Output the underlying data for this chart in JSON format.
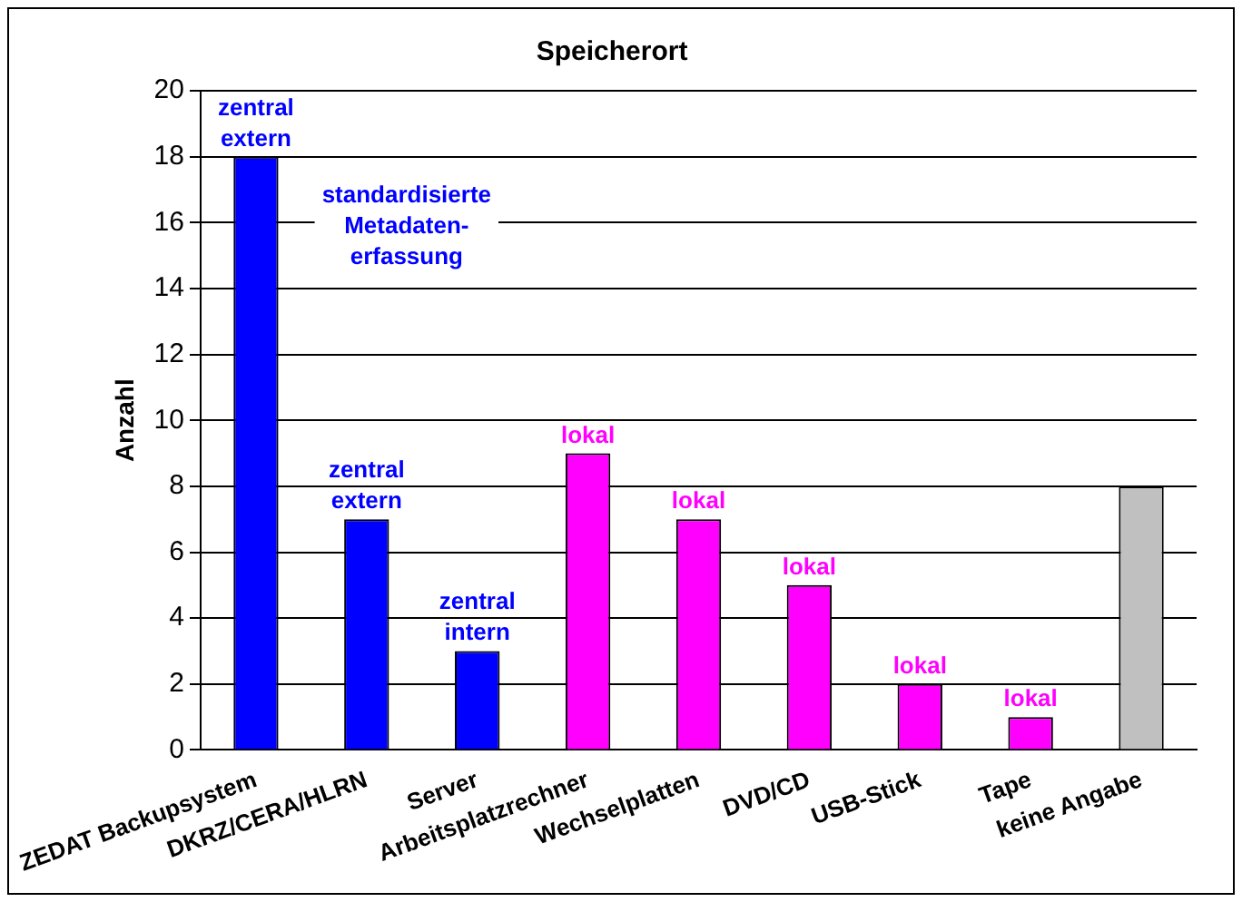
{
  "chart_data": {
    "type": "bar",
    "title": "Speicherort",
    "ylabel": "Anzahl",
    "categories": [
      "ZEDAT Backupsystem",
      "DKRZ/CERA/HLRN",
      "Server",
      "Arbeitsplatzrechner",
      "Wechselplatten",
      "DVD/CD",
      "USB-Stick",
      "Tape",
      "keine Angabe"
    ],
    "values": [
      18,
      7,
      3,
      9,
      7,
      5,
      2,
      1,
      8
    ],
    "colors": [
      "#0000ff",
      "#0000ff",
      "#0000ff",
      "#ff00ff",
      "#ff00ff",
      "#ff00ff",
      "#ff00ff",
      "#ff00ff",
      "#c0c0c0"
    ],
    "ylim": [
      0,
      20
    ],
    "yticks": [
      0,
      2,
      4,
      6,
      8,
      10,
      12,
      14,
      16,
      18,
      20
    ],
    "grid": "y",
    "legend": false,
    "annotations": [
      {
        "text": "zentral\nextern",
        "x": "ZEDAT Backupsystem",
        "y": 18
      },
      "standardisierte\nMetadaten-\nerfassung",
      {
        "text": "zentral\nextern",
        "x": "DKRZ/CERA/HLRN",
        "y": 7
      },
      {
        "text": "zentral\nintern",
        "x": "Server",
        "y": 3
      },
      {
        "text": "lokal",
        "x": "Arbeitsplatzrechner",
        "y": 9
      },
      {
        "text": "lokal",
        "x": "Wechselplatten",
        "y": 7
      },
      {
        "text": "lokal",
        "x": "DVD/CD",
        "y": 5
      },
      {
        "text": "lokal",
        "x": "USB-Stick",
        "y": 2
      },
      {
        "text": "lokal",
        "x": "Tape",
        "y": 1
      }
    ]
  }
}
